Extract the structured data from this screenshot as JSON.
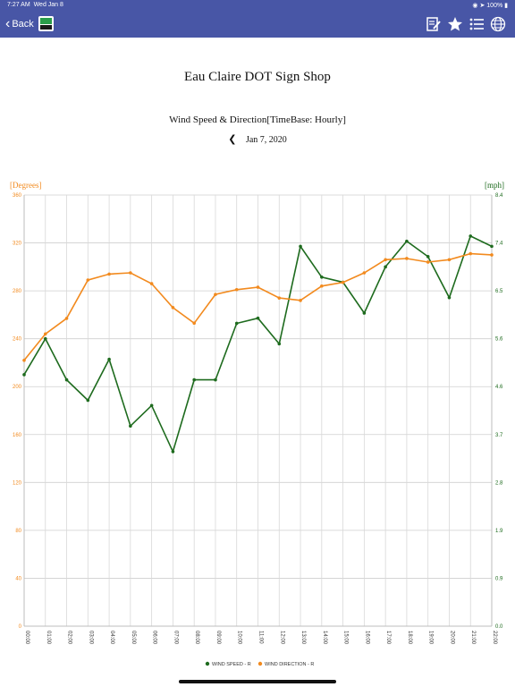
{
  "status": {
    "time": "7:27 AM",
    "date": "Wed Jan 8",
    "battery": "100%"
  },
  "nav": {
    "back_label": "Back"
  },
  "page_title": "Eau Claire DOT Sign Shop",
  "chart_title": "Wind Speed & Direction[TimeBase: Hourly]",
  "date_label": "Jan 7, 2020",
  "colors": {
    "header": "#4856a6",
    "speed": "#1e6b1e",
    "direction": "#f28a1e"
  },
  "chart_data": {
    "type": "line",
    "categories": [
      "00:00",
      "01:00",
      "02:00",
      "03:00",
      "04:00",
      "05:00",
      "06:00",
      "07:00",
      "08:00",
      "09:00",
      "10:00",
      "11:00",
      "12:00",
      "13:00",
      "14:00",
      "15:00",
      "16:00",
      "17:00",
      "18:00",
      "19:00",
      "20:00",
      "21:00",
      "22:00"
    ],
    "left_axis": {
      "label": "[Degrees]",
      "ylim": [
        0,
        360
      ],
      "ticks": [
        "0",
        "40",
        "80",
        "120",
        "160",
        "200",
        "240",
        "280",
        "320",
        "360"
      ]
    },
    "right_axis": {
      "label": "[mph]",
      "ylim": [
        0,
        8.4
      ],
      "ticks": [
        "0.0",
        "0.9",
        "1.9",
        "2.8",
        "3.7",
        "4.6",
        "5.6",
        "6.5",
        "7.4",
        "8.4"
      ]
    },
    "series": [
      {
        "name": "WIND SPEED - R",
        "axis": "right",
        "values": [
          4.9,
          5.6,
          4.8,
          4.4,
          5.2,
          3.9,
          4.3,
          3.4,
          4.8,
          4.8,
          5.9,
          6.0,
          5.5,
          7.4,
          6.8,
          6.7,
          6.1,
          7.0,
          7.5,
          7.2,
          6.4,
          7.6,
          7.4
        ]
      },
      {
        "name": "WIND DIRECTION - R",
        "axis": "left",
        "values": [
          222,
          244,
          257,
          289,
          294,
          295,
          286,
          266,
          253,
          277,
          281,
          283,
          274,
          272,
          284,
          287,
          295,
          306,
          307,
          304,
          306,
          311,
          310
        ]
      }
    ],
    "grid": true,
    "legend": "bottom-center"
  }
}
